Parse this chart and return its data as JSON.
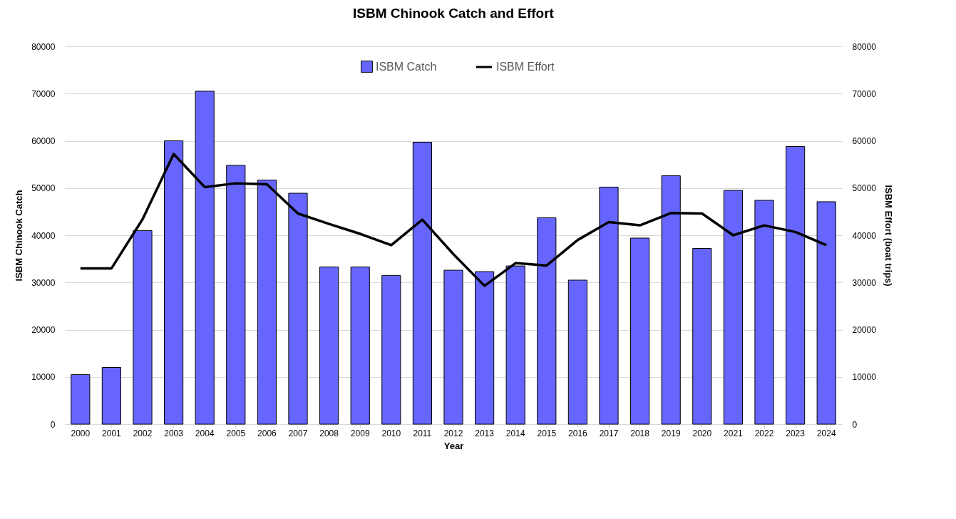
{
  "chart_data": {
    "type": "bar",
    "title": "ISBM Chinook Catch and Effort",
    "xlabel": "Year",
    "ylabel": "ISBM Chinook Catch",
    "y2label": "ISBM Effort (boat trips)",
    "categories": [
      "2000",
      "2001",
      "2002",
      "2003",
      "2004",
      "2005",
      "2006",
      "2007",
      "2008",
      "2009",
      "2010",
      "2011",
      "2012",
      "2013",
      "2014",
      "2015",
      "2016",
      "2017",
      "2018",
      "2019",
      "2020",
      "2021",
      "2022",
      "2023",
      "2024"
    ],
    "series": [
      {
        "name": "ISBM Catch",
        "color": "#6666ff",
        "values": [
          10500,
          12000,
          41000,
          60000,
          70500,
          54800,
          51700,
          48900,
          33300,
          33300,
          31500,
          59700,
          32600,
          32300,
          33500,
          43700,
          30500,
          50200,
          39400,
          52600,
          37200,
          49500,
          47400,
          58800,
          47100
        ]
      },
      {
        "name": "ISBM Effort",
        "type": "line",
        "axis": "y2",
        "color": "#000000",
        "values": [
          33000,
          33000,
          43400,
          57200,
          50200,
          51000,
          50800,
          44600,
          42400,
          40300,
          37900,
          43300,
          36000,
          29300,
          34100,
          33600,
          39000,
          42800,
          42100,
          44700,
          44600,
          40000,
          42100,
          40700,
          37900
        ]
      }
    ],
    "ylim": [
      0,
      80000
    ],
    "yticks": [
      0,
      10000,
      20000,
      30000,
      40000,
      50000,
      60000,
      70000,
      80000
    ],
    "y2lim": [
      0,
      80000
    ],
    "y2ticks": [
      0,
      10000,
      20000,
      30000,
      40000,
      50000,
      60000,
      70000,
      80000
    ],
    "grid": "y",
    "legend": "top",
    "marker": "none",
    "line_style": "solid"
  }
}
